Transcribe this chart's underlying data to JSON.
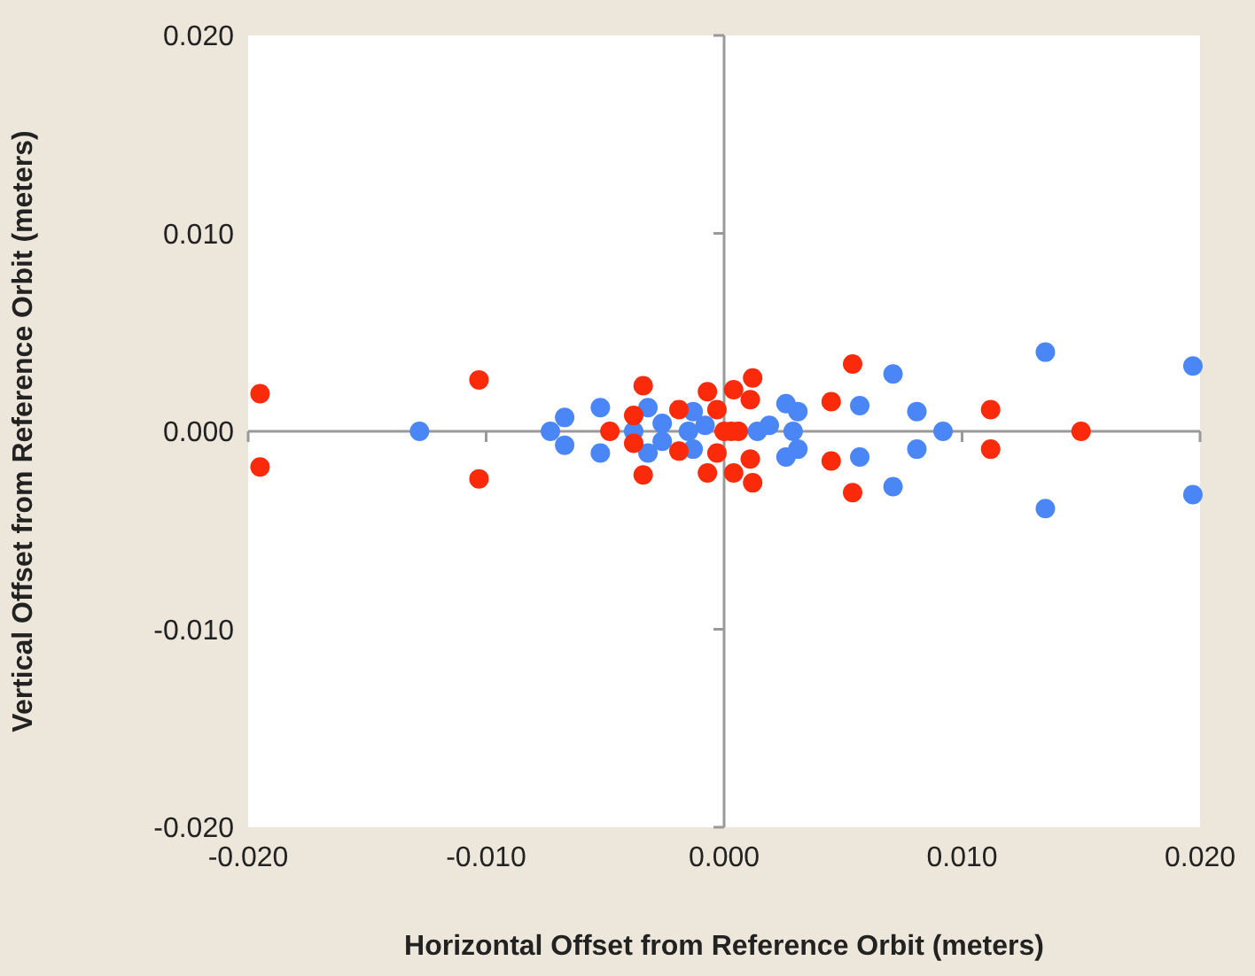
{
  "chart_data": {
    "type": "scatter",
    "xlabel": "Horizontal Offset from Reference Orbit (meters)",
    "ylabel": "Vertical Offset from Reference Orbit (meters)",
    "xlim": [
      -0.02,
      0.02
    ],
    "ylim": [
      -0.02,
      0.02
    ],
    "xticks": [
      {
        "value": -0.02,
        "label": "-0.020"
      },
      {
        "value": -0.01,
        "label": "-0.010"
      },
      {
        "value": 0,
        "label": "0.000"
      },
      {
        "value": 0.01,
        "label": "0.010"
      },
      {
        "value": 0.02,
        "label": "0.020"
      }
    ],
    "yticks": [
      {
        "value": -0.02,
        "label": "-0.020"
      },
      {
        "value": -0.01,
        "label": "-0.010"
      },
      {
        "value": 0,
        "label": "0.000"
      },
      {
        "value": 0.01,
        "label": "0.010"
      },
      {
        "value": 0.02,
        "label": "0.020"
      }
    ],
    "marker": "circle",
    "series": [
      {
        "color": "#4a86f5",
        "x": [
          -0.0128,
          -0.0073,
          -0.0067,
          -0.0067,
          -0.0052,
          -0.0052,
          -0.0038,
          -0.0032,
          -0.0032,
          -0.0026,
          -0.0026,
          -0.0013,
          -0.0013,
          -0.0015,
          -0.0008,
          0.0014,
          0.0019,
          0.0026,
          0.0031,
          0.0029,
          0.0026,
          0.0031,
          0.0057,
          0.0071,
          0.0081,
          0.0092,
          0.0081,
          0.0057,
          0.0071,
          0.0135,
          0.0135,
          0.0197,
          0.0197
        ],
        "values": [
          0,
          0,
          0.0007,
          -0.0007,
          0.0012,
          -0.0011,
          0,
          0.0012,
          -0.0011,
          0.0004,
          -0.0005,
          0.001,
          -0.0009,
          0,
          0.0003,
          0,
          0.0003,
          0.0014,
          0.001,
          0,
          -0.0013,
          -0.0009,
          0.0013,
          0.0029,
          0.001,
          0,
          -0.0009,
          -0.0013,
          -0.0028,
          0.004,
          -0.0039,
          0.0033,
          -0.0032
        ]
      },
      {
        "color": "#fa2a0a",
        "x": [
          -0.0195,
          -0.0195,
          -0.0103,
          -0.0103,
          -0.0048,
          -0.0038,
          -0.0038,
          -0.0034,
          -0.0034,
          -0.0019,
          -0.0019,
          -0.0007,
          -0.0007,
          -0.0003,
          -0.0003,
          0.0003,
          0,
          0.0006,
          0.0004,
          0.0004,
          0.0011,
          0.0011,
          0.0012,
          0.0012,
          0.0045,
          0.0045,
          0.0054,
          0.0054,
          0.0112,
          0.0112,
          0.015
        ],
        "values": [
          0.0019,
          -0.0018,
          0.0026,
          -0.0024,
          0,
          0.0008,
          -0.0006,
          0.0023,
          -0.0022,
          0.0011,
          -0.001,
          0.002,
          -0.0021,
          0.0011,
          -0.0011,
          0,
          0,
          0,
          0.0021,
          -0.0021,
          0.0016,
          -0.0014,
          0.0027,
          -0.0026,
          0.0015,
          -0.0015,
          0.0034,
          -0.0031,
          0.0011,
          -0.0009,
          0
        ]
      }
    ]
  }
}
